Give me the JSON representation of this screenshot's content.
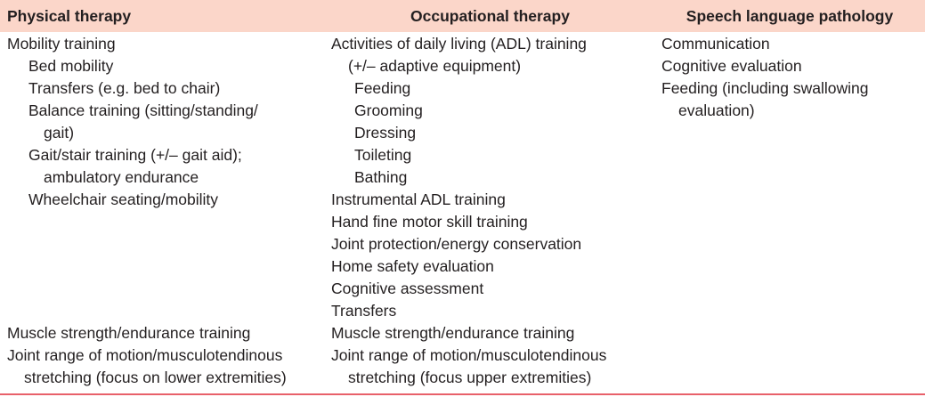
{
  "headers": [
    "Physical therapy",
    "Occupational therapy",
    "Speech language pathology"
  ],
  "rows": [
    {
      "pt": [
        {
          "text": "Mobility training",
          "level": 0
        },
        {
          "text": "Bed mobility",
          "level": 2
        },
        {
          "text": "Transfers (e.g. bed to chair)",
          "level": 2
        },
        {
          "text": "Balance training (sitting/standing/",
          "level": 2
        },
        {
          "text": "gait)",
          "level": 3
        },
        {
          "text": "Gait/stair training (+/– gait aid);",
          "level": 2
        },
        {
          "text": "ambulatory endurance",
          "level": 3
        },
        {
          "text": "Wheelchair seating/mobility",
          "level": 2
        }
      ],
      "ot": [
        {
          "text": "Activities of daily living (ADL) training",
          "level": 0
        },
        {
          "text": "(+/– adaptive equipment)",
          "level": 1
        },
        {
          "text": "Feeding",
          "level": 4
        },
        {
          "text": "Grooming",
          "level": 4
        },
        {
          "text": "Dressing",
          "level": 4
        },
        {
          "text": "Toileting",
          "level": 4
        },
        {
          "text": "Bathing",
          "level": 4
        },
        {
          "text": "Instrumental ADL training",
          "level": 0
        },
        {
          "text": "Hand fine motor skill training",
          "level": 0
        },
        {
          "text": "Joint protection/energy conservation",
          "level": 0
        },
        {
          "text": "Home safety evaluation",
          "level": 0
        },
        {
          "text": "Cognitive assessment",
          "level": 0
        },
        {
          "text": "Transfers",
          "level": 0
        }
      ],
      "slp": [
        {
          "text": "Communication",
          "level": 0
        },
        {
          "text": "Cognitive evaluation",
          "level": 0
        },
        {
          "text": "Feeding (including swallowing",
          "level": 0
        },
        {
          "text": "evaluation)",
          "level": 1
        }
      ]
    },
    {
      "pt": [
        {
          "text": "Muscle strength/endurance training",
          "level": 0
        }
      ],
      "ot": [
        {
          "text": "Muscle strength/endurance training",
          "level": 0
        }
      ],
      "slp": []
    },
    {
      "pt": [
        {
          "text": "Joint range of motion/musculotendinous",
          "level": 0
        },
        {
          "text": "stretching (focus on lower extremities)",
          "level": 1
        }
      ],
      "ot": [
        {
          "text": "Joint range of motion/musculotendinous",
          "level": 0
        },
        {
          "text": "stretching (focus upper extremities)",
          "level": 1
        }
      ],
      "slp": []
    }
  ],
  "colors": {
    "header_bg": "#fbd6c9",
    "bottom_rule": "#e8606a",
    "text": "#231f20"
  }
}
